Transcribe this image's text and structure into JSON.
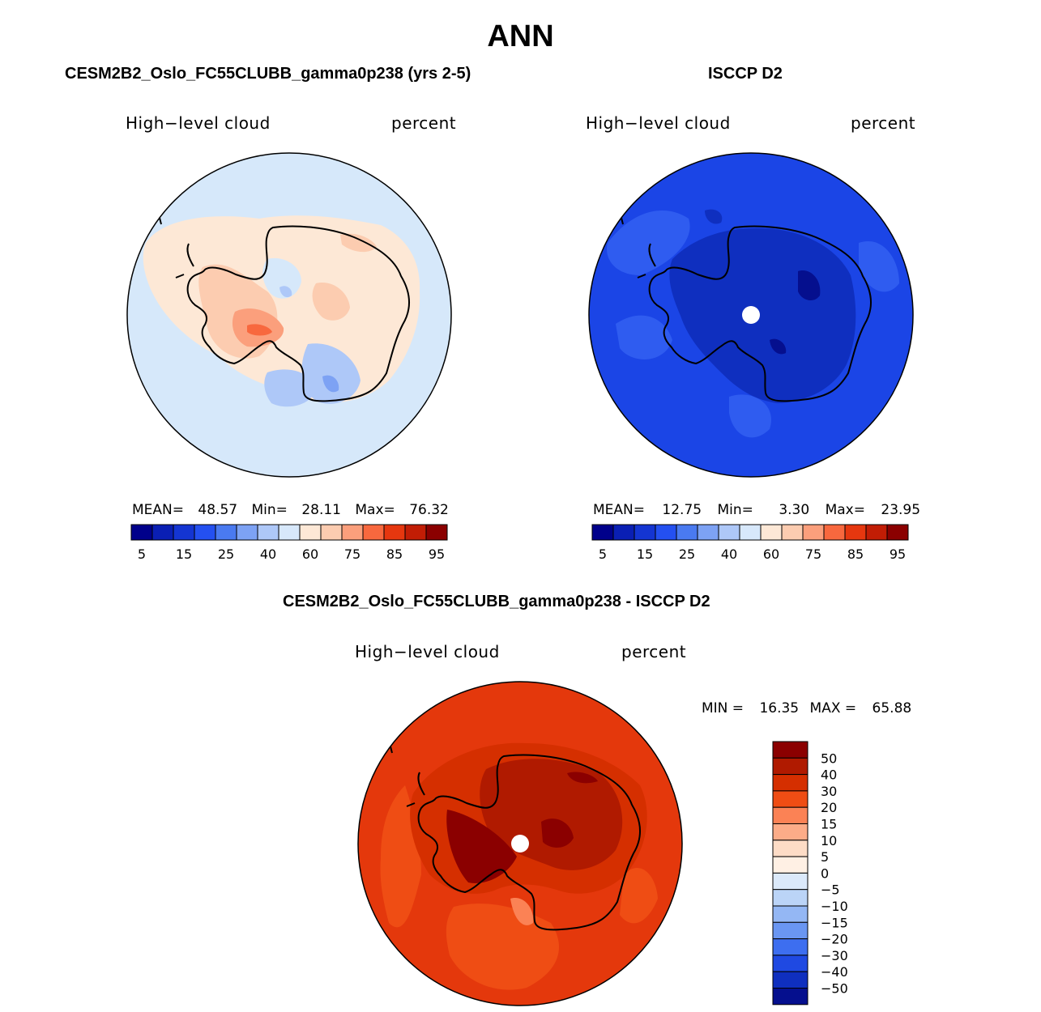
{
  "figure": {
    "title": "ANN"
  },
  "panels": [
    {
      "id": "model",
      "title": "CESM2B2_Oslo_FC55CLUBB_gamma0p238 (yrs 2-5)",
      "variable": "High−level cloud",
      "units": "percent",
      "stats": {
        "mean_label": "MEAN=",
        "mean": "48.57",
        "min_label": "Min=",
        "min": "28.11",
        "max_label": "Max=",
        "max": "76.32"
      }
    },
    {
      "id": "obs",
      "title": "ISCCP D2",
      "variable": "High−level cloud",
      "units": "percent",
      "stats": {
        "mean_label": "MEAN=",
        "mean": "12.75",
        "min_label": "Min=",
        "min": "3.30",
        "max_label": "Max=",
        "max": "23.95"
      }
    },
    {
      "id": "diff",
      "title": "CESM2B2_Oslo_FC55CLUBB_gamma0p238 - ISCCP D2",
      "variable": "High−level cloud",
      "units": "percent",
      "stats": {
        "min_label": "MIN =",
        "min": "16.35",
        "max_label": "MAX =",
        "max": "65.88"
      }
    }
  ],
  "colorbar_abs": {
    "colors": [
      "#00008b",
      "#0a1fb4",
      "#1435d2",
      "#2450f0",
      "#4a7af0",
      "#7da2f4",
      "#aec8f8",
      "#d7e8fb",
      "#fde8d6",
      "#fcccb0",
      "#fb9f7c",
      "#f8683e",
      "#e6370f",
      "#c21d05",
      "#8b0000"
    ],
    "tick_labels": [
      "5",
      "15",
      "25",
      "40",
      "60",
      "75",
      "85",
      "95"
    ]
  },
  "colorbar_diff": {
    "colors": [
      "#8b0000",
      "#b01a00",
      "#d52f00",
      "#ef4d14",
      "#fb8255",
      "#fcac88",
      "#fddcc6",
      "#fff0e4",
      "#dbe9fa",
      "#bbd4f7",
      "#94b7f4",
      "#6a96f2",
      "#3d6ef0",
      "#1f49e2",
      "#0f2fbf",
      "#050f8e"
    ],
    "tick_labels": [
      "50",
      "40",
      "30",
      "20",
      "15",
      "10",
      "5",
      "0",
      "−5",
      "−10",
      "−15",
      "−20",
      "−30",
      "−40",
      "−50"
    ]
  },
  "map_fill": {
    "model": "#d6e8fa",
    "obs": "#1b45e6",
    "diff": "#e4380c"
  },
  "chart_data": {
    "type": "polar-stereographic map",
    "region": "Southern Hemisphere high latitudes",
    "field": "High-level cloud (percent), annual mean",
    "panels": [
      {
        "name": "CESM2B2_Oslo_FC55CLUBB_gamma0p238 (yrs 2-5)",
        "mean": 48.57,
        "min": 28.11,
        "max": 76.32,
        "contour_levels": [
          5,
          10,
          15,
          20,
          25,
          30,
          40,
          50,
          60,
          70,
          75,
          80,
          85,
          90,
          95
        ]
      },
      {
        "name": "ISCCP D2",
        "mean": 12.75,
        "min": 3.3,
        "max": 23.95,
        "contour_levels": [
          5,
          10,
          15,
          20,
          25,
          30,
          40,
          50,
          60,
          70,
          75,
          80,
          85,
          90,
          95
        ]
      },
      {
        "name": "CESM2B2_Oslo_FC55CLUBB_gamma0p238 - ISCCP D2",
        "min": 16.35,
        "max": 65.88,
        "contour_levels": [
          -50,
          -40,
          -30,
          -20,
          -15,
          -10,
          -5,
          0,
          5,
          10,
          15,
          20,
          30,
          40,
          50
        ]
      }
    ]
  }
}
